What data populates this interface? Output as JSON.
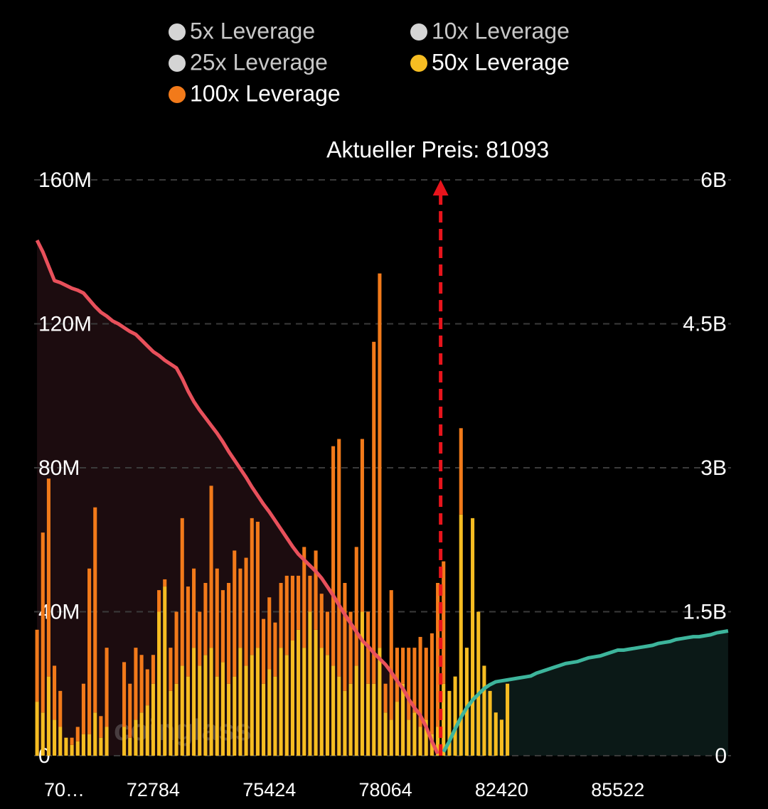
{
  "chart_data": {
    "type": "bar",
    "annotation": "Aktueller Preis: 81093",
    "watermark": "coinglass",
    "categories": [
      "70…",
      null,
      null,
      null,
      null,
      null,
      null,
      null,
      null,
      null,
      null,
      null,
      null,
      null,
      null,
      null,
      null,
      null,
      null,
      null,
      "72784",
      null,
      null,
      null,
      null,
      null,
      null,
      null,
      null,
      null,
      null,
      null,
      null,
      null,
      null,
      null,
      null,
      null,
      null,
      null,
      "75424",
      null,
      null,
      null,
      null,
      null,
      null,
      null,
      null,
      null,
      null,
      null,
      null,
      null,
      null,
      null,
      null,
      null,
      null,
      null,
      "78064",
      null,
      null,
      null,
      null,
      null,
      null,
      null,
      null,
      null,
      null,
      null,
      null,
      null,
      null,
      null,
      null,
      null,
      null,
      null,
      "82420",
      null,
      null,
      null,
      null,
      null,
      null,
      null,
      null,
      null,
      null,
      null,
      null,
      null,
      null,
      null,
      null,
      null,
      null,
      null,
      "85522",
      null,
      null,
      null,
      null,
      null,
      null,
      null,
      null,
      null,
      null,
      null,
      null,
      null,
      null,
      null,
      null,
      null,
      null,
      null
    ],
    "series": [
      {
        "name": "5x Leverage",
        "color": "#d4d4d4",
        "hidden": true
      },
      {
        "name": "10x Leverage",
        "color": "#d4d4d4",
        "hidden": true
      },
      {
        "name": "25x Leverage",
        "color": "#d4d4d4",
        "hidden": true
      },
      {
        "name": "50x Leverage",
        "color": "#f6bd22",
        "values": [
          15,
          12,
          22,
          10,
          8,
          5,
          3,
          4,
          6,
          6,
          12,
          5,
          8,
          0,
          0,
          8,
          5,
          10,
          12,
          14,
          20,
          40,
          47,
          18,
          20,
          25,
          22,
          30,
          25,
          28,
          30,
          22,
          26,
          20,
          22,
          30,
          25,
          28,
          30,
          20,
          24,
          22,
          30,
          28,
          32,
          35,
          30,
          40,
          35,
          30,
          28,
          25,
          22,
          18,
          20,
          25,
          40,
          20,
          20,
          30,
          12,
          10,
          15,
          20,
          10,
          12,
          8,
          10,
          6,
          8,
          20,
          18,
          22,
          67,
          30,
          66,
          40,
          25,
          18,
          12,
          10,
          20,
          0,
          0,
          0,
          0,
          0,
          0,
          0,
          0,
          0,
          0,
          0,
          0,
          0,
          0,
          0,
          0,
          0,
          0,
          0,
          0,
          0,
          0,
          0,
          0,
          0,
          0,
          0,
          0,
          0,
          0,
          0,
          0,
          0,
          0,
          0,
          0,
          0,
          0
        ]
      },
      {
        "name": "100x Leverage",
        "color": "#f27a1a",
        "values": [
          20,
          50,
          55,
          15,
          10,
          0,
          2,
          4,
          14,
          46,
          57,
          6,
          22,
          0,
          0,
          18,
          15,
          20,
          16,
          10,
          8,
          6,
          2,
          12,
          20,
          41,
          25,
          22,
          15,
          20,
          45,
          30,
          20,
          28,
          35,
          22,
          30,
          38,
          35,
          18,
          20,
          15,
          18,
          22,
          18,
          15,
          28,
          10,
          22,
          15,
          12,
          61,
          66,
          30,
          20,
          33,
          48,
          20,
          95,
          104,
          8,
          36,
          15,
          10,
          20,
          18,
          25,
          20,
          28,
          40,
          34,
          0,
          0,
          24,
          0,
          0,
          0,
          0,
          0,
          0,
          0,
          0,
          0,
          0,
          0,
          0,
          0,
          0,
          0,
          0,
          0,
          0,
          0,
          0,
          0,
          0,
          0,
          0,
          0,
          0,
          0,
          0,
          0,
          0,
          0,
          0,
          0,
          0,
          0,
          0,
          0,
          0,
          0,
          0,
          0,
          0,
          0,
          0,
          0,
          0
        ]
      }
    ],
    "lines": [
      {
        "color": "#e8505b",
        "fill": "#1c0c0f",
        "axis": "y2",
        "values": [
          5.37,
          5.25,
          5.1,
          4.95,
          4.93,
          4.9,
          4.87,
          4.85,
          4.82,
          4.75,
          4.68,
          4.62,
          4.58,
          4.53,
          4.5,
          4.46,
          4.42,
          4.39,
          4.33,
          4.27,
          4.21,
          4.17,
          4.12,
          4.08,
          4.04,
          3.93,
          3.8,
          3.69,
          3.6,
          3.52,
          3.44,
          3.36,
          3.27,
          3.17,
          3.08,
          2.99,
          2.9,
          2.8,
          2.71,
          2.62,
          2.54,
          2.45,
          2.36,
          2.27,
          2.18,
          2.1,
          2.04,
          1.98,
          1.92,
          1.85,
          1.76,
          1.67,
          1.57,
          1.47,
          1.38,
          1.29,
          1.2,
          1.14,
          1.07,
          1.01,
          0.95,
          0.87,
          0.78,
          0.7,
          0.59,
          0.5,
          0.42,
          0.3,
          0.15,
          0.02,
          null,
          null,
          null,
          null,
          null,
          null,
          null,
          null,
          null,
          null,
          null,
          null,
          null,
          null,
          null,
          null,
          null,
          null,
          null,
          null,
          null,
          null,
          null,
          null,
          null,
          null,
          null,
          null,
          null,
          null,
          null,
          null,
          null,
          null,
          null,
          null,
          null,
          null,
          null,
          null,
          null,
          null,
          null,
          null,
          null,
          null,
          null,
          null,
          null,
          null
        ]
      },
      {
        "color": "#3db59c",
        "fill": "#0b1917",
        "axis": "y2",
        "values": [
          null,
          null,
          null,
          null,
          null,
          null,
          null,
          null,
          null,
          null,
          null,
          null,
          null,
          null,
          null,
          null,
          null,
          null,
          null,
          null,
          null,
          null,
          null,
          null,
          null,
          null,
          null,
          null,
          null,
          null,
          null,
          null,
          null,
          null,
          null,
          null,
          null,
          null,
          null,
          null,
          null,
          null,
          null,
          null,
          null,
          null,
          null,
          null,
          null,
          null,
          null,
          null,
          null,
          null,
          null,
          null,
          null,
          null,
          null,
          null,
          null,
          null,
          null,
          null,
          null,
          null,
          null,
          null,
          null,
          null,
          0.04,
          0.15,
          0.28,
          0.4,
          0.5,
          0.58,
          0.64,
          0.7,
          0.74,
          0.77,
          0.78,
          0.79,
          0.8,
          0.81,
          0.82,
          0.83,
          0.86,
          0.88,
          0.9,
          0.92,
          0.94,
          0.96,
          0.97,
          0.98,
          1.0,
          1.02,
          1.03,
          1.04,
          1.06,
          1.08,
          1.1,
          1.1,
          1.11,
          1.12,
          1.13,
          1.14,
          1.15,
          1.17,
          1.18,
          1.19,
          1.21,
          1.22,
          1.23,
          1.24,
          1.24,
          1.25,
          1.26,
          1.28,
          1.29,
          1.3
        ]
      }
    ],
    "ylim": [
      0,
      160
    ],
    "yticks": [
      0,
      {
        "value": 40,
        "label": "40M"
      },
      {
        "value": 80,
        "label": "80M"
      },
      {
        "value": 120,
        "label": "120M"
      },
      {
        "value": 160,
        "label": "160M"
      }
    ],
    "y2lim": [
      0,
      6
    ],
    "y2ticks": [
      0,
      {
        "value": 1.5,
        "label": "1.5B"
      },
      {
        "value": 3,
        "label": "3B"
      },
      {
        "value": 4.5,
        "label": "4.5B"
      },
      {
        "value": 6,
        "label": "6B"
      }
    ],
    "grid": true,
    "stacked": true
  }
}
